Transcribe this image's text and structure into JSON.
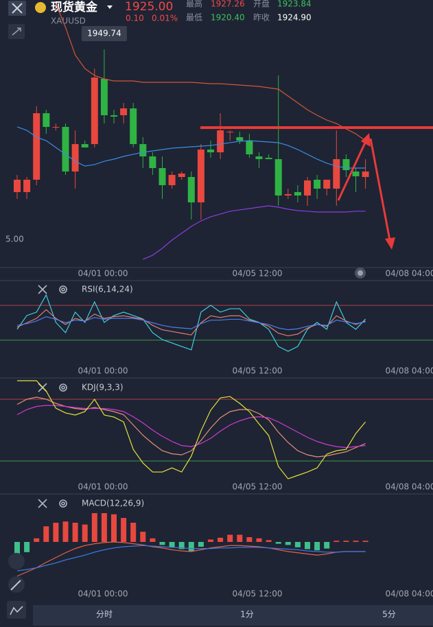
{
  "header": {
    "title": "现货黄金",
    "symbol": "XAUUSD",
    "price": "1925.00",
    "change": "0.10",
    "change_pct": "0.01%",
    "high_label": "最高",
    "high": "1927.26",
    "open_label": "开盘",
    "open": "1923.84",
    "low_label": "最低",
    "low": "1920.40",
    "prev_close_label": "昨收",
    "prev_close": "1924.90"
  },
  "tabs": [
    "分时",
    "1分",
    "5分"
  ],
  "chart_data": [
    {
      "type": "candlestick",
      "up_color": "#e8483f",
      "down_color": "#2fb344",
      "ylim": [
        1909.89,
        1958.76
      ],
      "yticks": [
        {
          "value": 1915,
          "label": "5.00"
        }
      ],
      "annotation": "1949.74",
      "xtick_labels": [
        "04/01 00:00",
        "04/05 12:00",
        "04/08 04:00"
      ],
      "open": [
        1923.67,
        1923.67,
        1925.93,
        1938.08,
        1935.58,
        1935.58,
        1927.43,
        1932.44,
        1932.44,
        1944.35,
        1937.71,
        1937.71,
        1938.96,
        1932.44,
        1930.19,
        1928.06,
        1924.93,
        1926.43,
        1926.43,
        1921.79,
        1931.44,
        1930.94,
        1934.58,
        1933.7,
        1933.07,
        1930.19,
        1929.94,
        1929.69,
        1923.05,
        1923.67,
        1923.05,
        1925.93,
        1924.3,
        1924.3,
        1929.69,
        1927.43,
        1926.43
      ],
      "high": [
        1926.81,
        1926.43,
        1939.34,
        1938.71,
        1936.2,
        1936.2,
        1934.95,
        1933.07,
        1946.23,
        1949.74,
        1938.71,
        1939.96,
        1939.96,
        1933.7,
        1930.94,
        1930.19,
        1927.43,
        1927.43,
        1927.43,
        1932.44,
        1933.07,
        1938.08,
        1934.95,
        1934.7,
        1934.32,
        1930.94,
        1930.57,
        1944.98,
        1924.3,
        1924.93,
        1926.43,
        1926.81,
        1925.93,
        1934.95,
        1930.57,
        1928.06,
        1929.69
      ],
      "low": [
        1922.42,
        1922.42,
        1924.93,
        1934.32,
        1934.95,
        1926.81,
        1924.3,
        1931.82,
        1931.82,
        1936.2,
        1936.2,
        1936.2,
        1931.82,
        1928.06,
        1926.81,
        1922.42,
        1924.3,
        1925.93,
        1918.66,
        1918.66,
        1929.94,
        1929.69,
        1933.07,
        1932.44,
        1929.94,
        1928.06,
        1929.69,
        1921.17,
        1922.42,
        1921.79,
        1921.17,
        1922.42,
        1923.05,
        1921.17,
        1926.43,
        1923.67,
        1924.3
      ],
      "close": [
        1925.93,
        1925.93,
        1938.08,
        1935.58,
        1935.58,
        1927.43,
        1932.44,
        1931.82,
        1944.6,
        1937.71,
        1937.46,
        1938.96,
        1932.44,
        1930.19,
        1928.06,
        1924.93,
        1926.81,
        1927.06,
        1921.79,
        1931.44,
        1930.94,
        1934.95,
        1934.7,
        1933.07,
        1930.57,
        1929.69,
        1929.69,
        1923.05,
        1923.3,
        1923.05,
        1925.8,
        1924.3,
        1925.93,
        1929.69,
        1927.68,
        1926.56,
        1927.43
      ],
      "series": [
        {
          "color": "#d4553a",
          "values": [
            null,
            null,
            null,
            null,
            1958.13,
            1953.75,
            1948.73,
            1946.23,
            1944.98,
            1944.35,
            1943.97,
            1943.97,
            1943.97,
            1943.72,
            1943.72,
            1943.72,
            1943.72,
            1943.72,
            1943.72,
            1943.6,
            1943.47,
            1943.47,
            1943.35,
            1943.22,
            1943.1,
            1942.97,
            1942.72,
            1942.47,
            1941.22,
            1939.96,
            1938.71,
            1937.71,
            1936.83,
            1936.2,
            1935.2,
            1934.32,
            1933.07
          ]
        },
        {
          "color": "#3a8ee6",
          "values": [
            1935.58,
            1934.95,
            1933.7,
            1933.07,
            1931.82,
            1930.57,
            1929.31,
            1928.43,
            1928.69,
            1929.31,
            1929.69,
            1930.19,
            1930.57,
            1930.94,
            1931.19,
            1931.44,
            1931.69,
            1931.82,
            1931.94,
            1932.07,
            1932.19,
            1932.44,
            1932.7,
            1932.95,
            1933.07,
            1932.95,
            1932.82,
            1932.7,
            1932.19,
            1931.44,
            1930.57,
            1929.69,
            1928.94,
            1928.43,
            1928.06,
            1928.06,
            1928.06
          ]
        },
        {
          "color": "#8a3ee0",
          "values": [
            null,
            null,
            null,
            null,
            null,
            null,
            null,
            null,
            null,
            null,
            null,
            null,
            null,
            1911.39,
            1912.14,
            1913.4,
            1914.9,
            1916.15,
            1917.41,
            1918.41,
            1919.16,
            1919.66,
            1920.17,
            1920.42,
            1920.67,
            1920.92,
            1921.17,
            1920.92,
            1920.54,
            1920.29,
            1920.17,
            1920.04,
            1920.04,
            1920.04,
            1920.04,
            1920.17,
            1920.17
          ]
        }
      ]
    },
    {
      "type": "line",
      "title": "RSI(6,14,24)",
      "ylim": [
        0,
        100
      ],
      "levels": [
        70,
        30
      ],
      "level_colors": [
        "#b0424a",
        "#3a9a4a"
      ],
      "xtick_labels": [
        "04/01 00:00",
        "04/05 12:00",
        "04/08 04:00"
      ],
      "series": [
        {
          "color": "#3fd0e0",
          "values": [
            42.5,
            58.3,
            62.2,
            81.9,
            50.4,
            38.6,
            62.2,
            50.4,
            74.0,
            50.4,
            58.3,
            62.2,
            58.3,
            54.3,
            38.6,
            30.7,
            26.8,
            22.8,
            18.9,
            62.2,
            70.1,
            62.2,
            66.1,
            66.1,
            54.3,
            50.4,
            42.5,
            22.8,
            17.3,
            22.8,
            42.5,
            50.4,
            42.5,
            74.0,
            50.4,
            42.5,
            54.3
          ]
        },
        {
          "color": "#e08070",
          "values": [
            45,
            50,
            55,
            65,
            55,
            48,
            55,
            52,
            60,
            55,
            57,
            58,
            56,
            54,
            47,
            42,
            40,
            38,
            36,
            50,
            58,
            56,
            58,
            58,
            53,
            50,
            46,
            38,
            35,
            37,
            44,
            48,
            46,
            58,
            52,
            48,
            52
          ]
        },
        {
          "color": "#4a7ef0",
          "values": [
            47,
            49,
            52,
            57,
            54,
            50,
            53,
            52,
            56,
            54,
            55,
            55,
            55,
            53,
            50,
            47,
            45,
            44,
            43,
            49,
            53,
            53,
            54,
            54,
            52,
            50,
            48,
            44,
            42,
            43,
            46,
            48,
            47,
            53,
            51,
            49,
            51
          ]
        }
      ]
    },
    {
      "type": "line",
      "title": "KDJ(9,3,3)",
      "ylim": [
        0,
        100
      ],
      "levels": [
        80,
        20
      ],
      "level_colors": [
        "#b0424a",
        "#3a9a4a"
      ],
      "xtick_labels": [
        "04/01 00:00",
        "04/05 12:00",
        "04/08 04:00"
      ],
      "series": [
        {
          "color": "#e8907a",
          "values": [
            75,
            80,
            82,
            80,
            76,
            73,
            71,
            70,
            72,
            70,
            68,
            65,
            55,
            45,
            37,
            30,
            27,
            26,
            30,
            40,
            52,
            62,
            68,
            70,
            70,
            66,
            60,
            48,
            38,
            30,
            26,
            24,
            25,
            27,
            29,
            33,
            37
          ]
        },
        {
          "color": "#d03ad6",
          "values": [
            65,
            70,
            73,
            74,
            74,
            73,
            72,
            71,
            71,
            71,
            70,
            68,
            63,
            57,
            50,
            44,
            39,
            35,
            34,
            37,
            42,
            49,
            55,
            59,
            62,
            63,
            62,
            58,
            53,
            48,
            43,
            39,
            36,
            34,
            33,
            34,
            35
          ]
        },
        {
          "color": "#e6e23c",
          "values": [
            98,
            98,
            98,
            88,
            71.3,
            66.7,
            64.7,
            68,
            80,
            64.7,
            62.7,
            58,
            31.3,
            18,
            9.3,
            9.3,
            13.3,
            9.3,
            24.7,
            49.3,
            69.3,
            81.3,
            82.7,
            76,
            68,
            56,
            44.7,
            14.7,
            2.7,
            6,
            9.3,
            13.3,
            26.7,
            30,
            31.3,
            46.7,
            58
          ]
        }
      ]
    },
    {
      "type": "macd",
      "title": "MACD(12,26,9)",
      "ylim": [
        -8,
        8
      ],
      "up_color": "#e8483f",
      "down_color": "#3fc08a",
      "xtick_labels": [
        "04/01 00:00",
        "04/05 12:00",
        "04/08 04:00"
      ],
      "values": [
        -4.3,
        -1.7,
        0.6,
        2.6,
        3.2,
        3.4,
        3.2,
        2.9,
        4.8,
        4.8,
        4.6,
        4.0,
        3.2,
        1.7,
        0.6,
        -0.5,
        -0.9,
        -1.2,
        -1.6,
        -0.8,
        0.4,
        0.7,
        1.2,
        1.2,
        0.8,
        0.6,
        0.3,
        -0.3,
        -0.5,
        -0.9,
        -1.2,
        -1.4,
        -1.1,
        0.2,
        0.2,
        0.2,
        0.2
      ],
      "series": [
        {
          "color": "#e8604a",
          "values": [
            -5.7,
            -5.0,
            -4.3,
            -3.4,
            -2.6,
            -1.8,
            -1.1,
            -0.6,
            -0.3,
            -0.1,
            0,
            -0.1,
            -0.3,
            -0.5,
            -0.8,
            -1.0,
            -1.3,
            -1.5,
            -1.6,
            -1.3,
            -1.0,
            -0.8,
            -0.6,
            -0.6,
            -0.7,
            -0.8,
            -1.0,
            -1.3,
            -1.6,
            -1.8,
            -2.0,
            -2.2,
            -2.0,
            -1.7,
            -1.6,
            -1.6,
            -1.6
          ]
        },
        {
          "color": "#3a78e0",
          "values": [
            -4.8,
            -4.6,
            -4.3,
            -3.9,
            -3.5,
            -3.0,
            -2.6,
            -2.2,
            -1.7,
            -1.3,
            -1.0,
            -0.8,
            -0.7,
            -0.6,
            -0.7,
            -0.8,
            -0.9,
            -1.0,
            -1.1,
            -1.1,
            -1.1,
            -1.0,
            -1.0,
            -0.9,
            -0.9,
            -0.9,
            -1.0,
            -1.1,
            -1.2,
            -1.3,
            -1.5,
            -1.6,
            -1.7,
            -1.7,
            -1.6,
            -1.6,
            -1.6
          ]
        }
      ]
    }
  ]
}
